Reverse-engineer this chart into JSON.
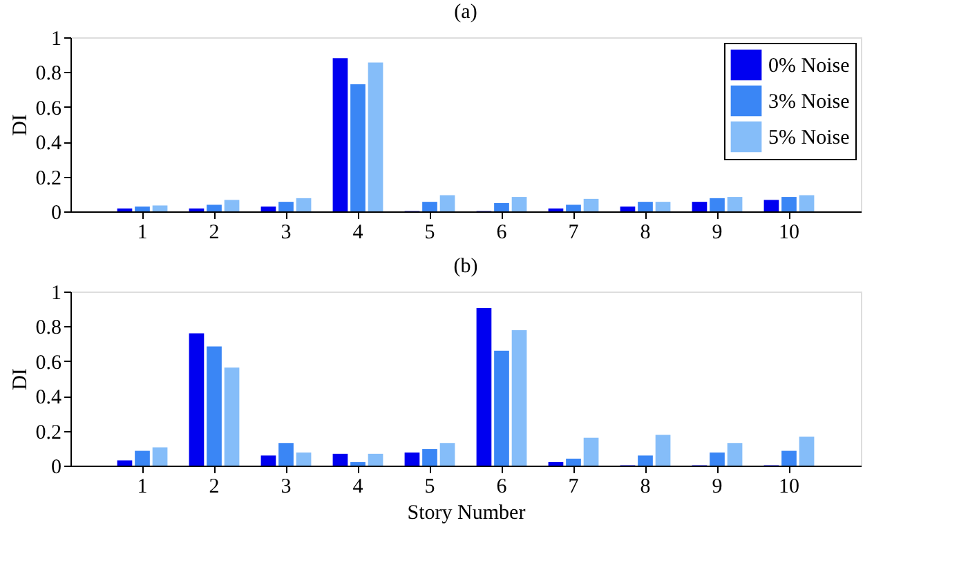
{
  "chart_data": [
    {
      "type": "bar",
      "title": "(a)",
      "ylabel": "DI",
      "categories": [
        "1",
        "2",
        "3",
        "4",
        "5",
        "6",
        "7",
        "8",
        "9",
        "10"
      ],
      "ylim": [
        0,
        1
      ],
      "yticks": [
        0,
        0.2,
        0.4,
        0.6,
        0.8,
        1
      ],
      "grid": false,
      "legend": "top right",
      "series": [
        {
          "name": "0% Noise",
          "color": "#0000f0",
          "values": [
            0.017,
            0.017,
            0.028,
            0.88,
            0.002,
            0.002,
            0.017,
            0.028,
            0.055,
            0.066
          ]
        },
        {
          "name": "3% Noise",
          "color": "#3a86f5",
          "values": [
            0.028,
            0.038,
            0.055,
            0.73,
            0.055,
            0.048,
            0.038,
            0.055,
            0.076,
            0.083
          ]
        },
        {
          "name": "5% Noise",
          "color": "#85bdf9",
          "values": [
            0.034,
            0.066,
            0.076,
            0.855,
            0.093,
            0.083,
            0.072,
            0.055,
            0.083,
            0.093
          ]
        }
      ]
    },
    {
      "type": "bar",
      "title": "(b)",
      "ylabel": "DI",
      "xlabel": "Story Number",
      "categories": [
        "1",
        "2",
        "3",
        "4",
        "5",
        "6",
        "7",
        "8",
        "9",
        "10"
      ],
      "ylim": [
        0,
        1
      ],
      "yticks": [
        0,
        0.2,
        0.4,
        0.6,
        0.8,
        1
      ],
      "grid": false,
      "series": [
        {
          "color": "#0000f0",
          "values": [
            0.03,
            0.76,
            0.058,
            0.068,
            0.075,
            0.905,
            0.02,
            0.002,
            0.002,
            0.002
          ]
        },
        {
          "color": "#3a86f5",
          "values": [
            0.085,
            0.685,
            0.13,
            0.02,
            0.095,
            0.66,
            0.04,
            0.058,
            0.075,
            0.085
          ]
        },
        {
          "color": "#85bdf9",
          "values": [
            0.105,
            0.563,
            0.075,
            0.068,
            0.13,
            0.778,
            0.16,
            0.177,
            0.13,
            0.167
          ]
        }
      ]
    }
  ]
}
